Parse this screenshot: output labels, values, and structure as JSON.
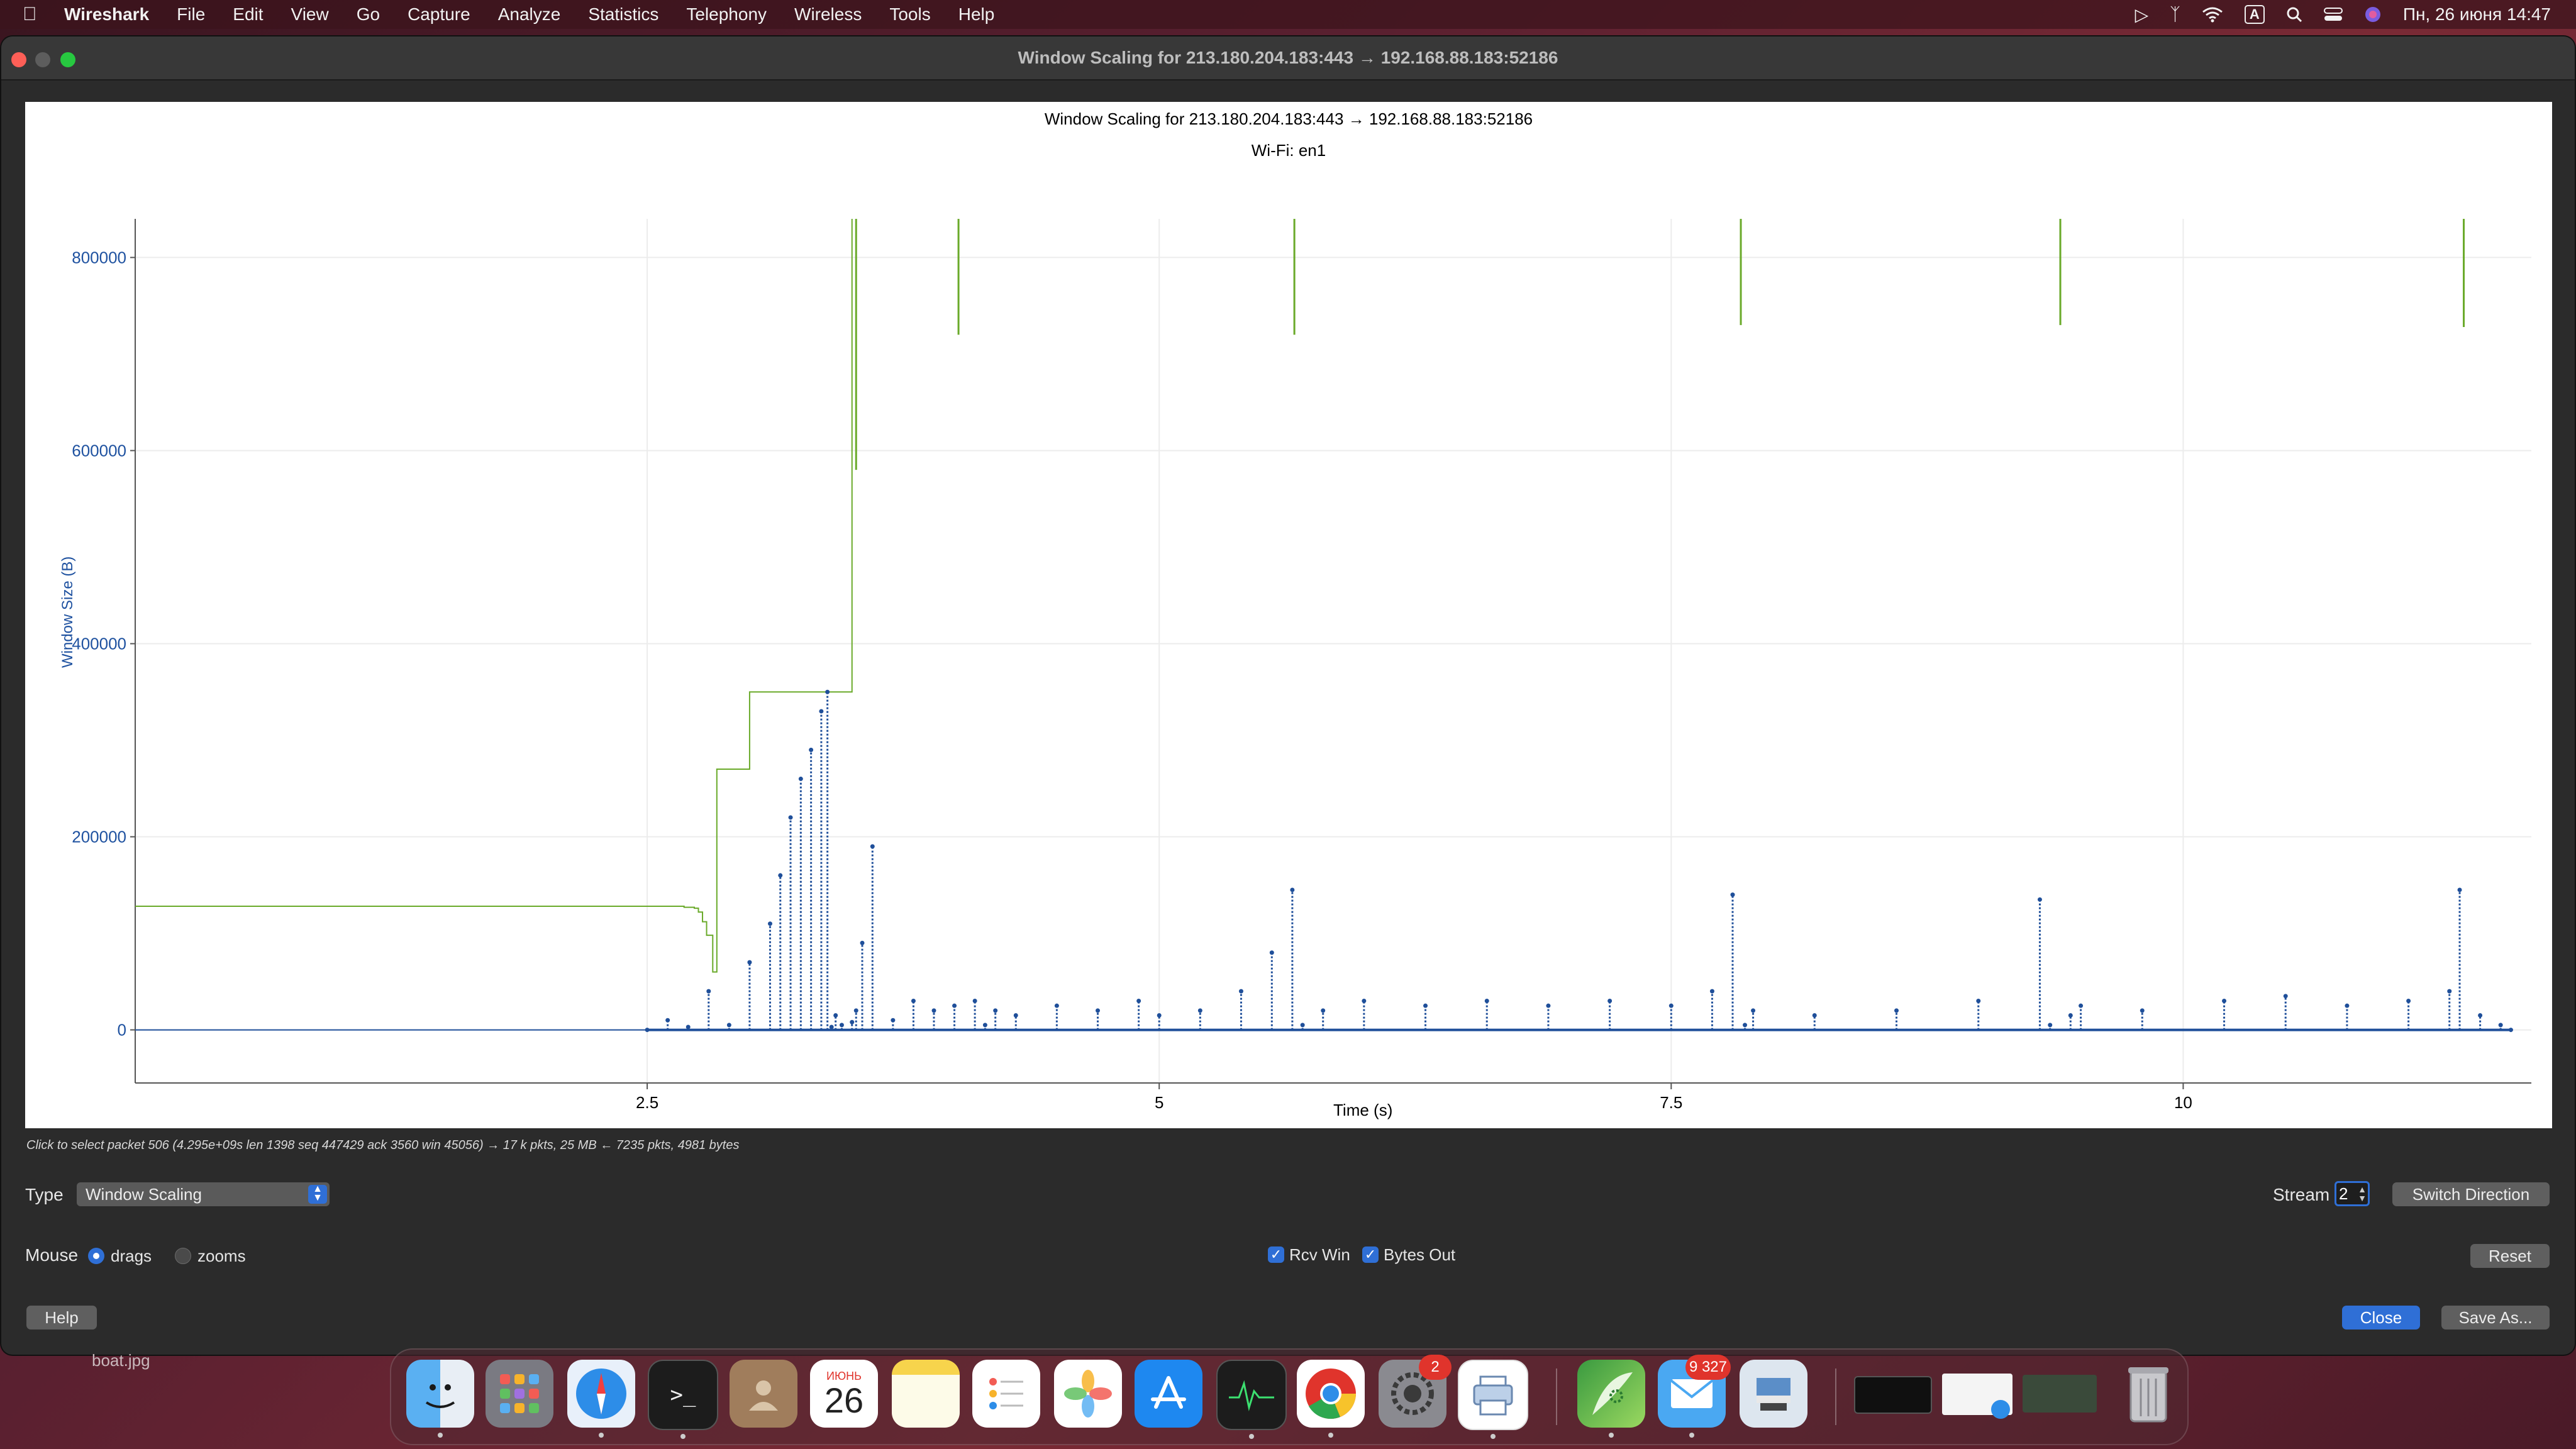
{
  "menubar": {
    "app": "Wireshark",
    "items": [
      "File",
      "Edit",
      "View",
      "Go",
      "Capture",
      "Analyze",
      "Statistics",
      "Telephony",
      "Wireless",
      "Tools",
      "Help"
    ],
    "input_badge": "A",
    "datetime": "Пн, 26 июня  14:47"
  },
  "window": {
    "title": "Window Scaling for 213.180.204.183:443 → 192.168.88.183:52186"
  },
  "chart_data": {
    "type": "line",
    "title": "Window Scaling for 213.180.204.183:443 → 192.168.88.183:52186",
    "subtitle": "Wi-Fi: en1",
    "xlabel": "Time (s)",
    "ylabel": "Window Size (B)",
    "xlim": [
      0.0,
      11.7
    ],
    "ylim": [
      -55000,
      840000
    ],
    "x_ticks": [
      {
        "value": 2.5,
        "label": "2.5"
      },
      {
        "value": 5,
        "label": "5"
      },
      {
        "value": 7.5,
        "label": "7.5"
      },
      {
        "value": 10,
        "label": "10"
      }
    ],
    "y_ticks": [
      {
        "value": 0,
        "label": "0"
      },
      {
        "value": 200000,
        "label": "200000"
      },
      {
        "value": 400000,
        "label": "400000"
      },
      {
        "value": 600000,
        "label": "600000"
      },
      {
        "value": 800000,
        "label": "800000"
      }
    ],
    "grid": true,
    "series": [
      {
        "key": "rcv_win",
        "color": "#6aaa2a",
        "style": "step",
        "x": [
          0.0,
          2.6,
          2.68,
          2.73,
          2.75,
          2.77,
          2.79,
          2.82,
          2.84,
          3.0,
          3.02,
          3.5,
          3.5
        ],
        "y": [
          128000,
          128000,
          127000,
          126000,
          122000,
          112000,
          98000,
          60000,
          270000,
          350000,
          350000,
          350000,
          840000
        ]
      },
      {
        "key": "bytes_out",
        "color": "#1f4f9a",
        "style": "markers",
        "x": [
          2.5,
          2.6,
          2.7,
          2.8,
          2.9,
          3.0,
          3.1,
          3.15,
          3.2,
          3.25,
          3.3,
          3.35,
          3.38,
          3.4,
          3.42,
          3.45,
          3.5,
          3.52,
          3.55,
          3.6,
          3.7,
          3.8,
          3.9,
          4.0,
          4.1,
          4.15,
          4.2,
          4.3,
          4.5,
          4.7,
          4.9,
          5.0,
          5.2,
          5.4,
          5.55,
          5.65,
          5.7,
          5.8,
          6.0,
          6.3,
          6.6,
          6.9,
          7.2,
          7.5,
          7.7,
          7.8,
          7.86,
          7.9,
          8.2,
          8.6,
          9.0,
          9.3,
          9.35,
          9.45,
          9.5,
          9.8,
          10.2,
          10.5,
          10.8,
          11.1,
          11.3,
          11.35,
          11.45,
          11.55,
          11.6
        ],
        "y": [
          0,
          10000,
          3000,
          40000,
          5000,
          70000,
          110000,
          160000,
          220000,
          260000,
          290000,
          330000,
          350000,
          3000,
          15000,
          5000,
          8000,
          20000,
          90000,
          190000,
          10000,
          30000,
          20000,
          25000,
          30000,
          5000,
          20000,
          15000,
          25000,
          20000,
          30000,
          15000,
          20000,
          40000,
          80000,
          145000,
          5000,
          20000,
          30000,
          25000,
          30000,
          25000,
          30000,
          25000,
          40000,
          140000,
          5000,
          20000,
          15000,
          20000,
          30000,
          135000,
          5000,
          15000,
          25000,
          20000,
          30000,
          35000,
          25000,
          30000,
          40000,
          145000,
          15000,
          5000,
          0
        ]
      }
    ],
    "rcv_spikes": [
      {
        "x": 3.52,
        "y_top": 840000,
        "y_bottom": 580000
      },
      {
        "x": 4.02,
        "y_top": 840000,
        "y_bottom": 720000
      },
      {
        "x": 5.66,
        "y_top": 840000,
        "y_bottom": 720000
      },
      {
        "x": 7.84,
        "y_top": 840000,
        "y_bottom": 730000
      },
      {
        "x": 9.4,
        "y_top": 840000,
        "y_bottom": 730000
      },
      {
        "x": 11.37,
        "y_top": 840000,
        "y_bottom": 728000
      }
    ]
  },
  "status": {
    "text": "Click to select packet 506 (4.295e+09s len 1398 seq 447429 ack 3560 win 45056) → 17 k pkts, 25 MB ← 7235 pkts, 4981 bytes"
  },
  "controls": {
    "type_label": "Type",
    "type_value": "Window Scaling",
    "stream_label": "Stream",
    "stream_value": "2",
    "switch_direction": "Switch Direction",
    "mouse_label": "Mouse",
    "drags_label": "drags",
    "zooms_label": "zooms",
    "rcv_win_label": "Rcv Win",
    "bytes_out_label": "Bytes Out",
    "reset": "Reset",
    "help": "Help",
    "close": "Close",
    "save_as": "Save As..."
  },
  "desktop": {
    "file_label": "boat.jpg"
  },
  "dock": {
    "calendar_month": "ИЮНЬ",
    "calendar_day": "26",
    "settings_badge": "2",
    "mail_badge": "9 327"
  }
}
